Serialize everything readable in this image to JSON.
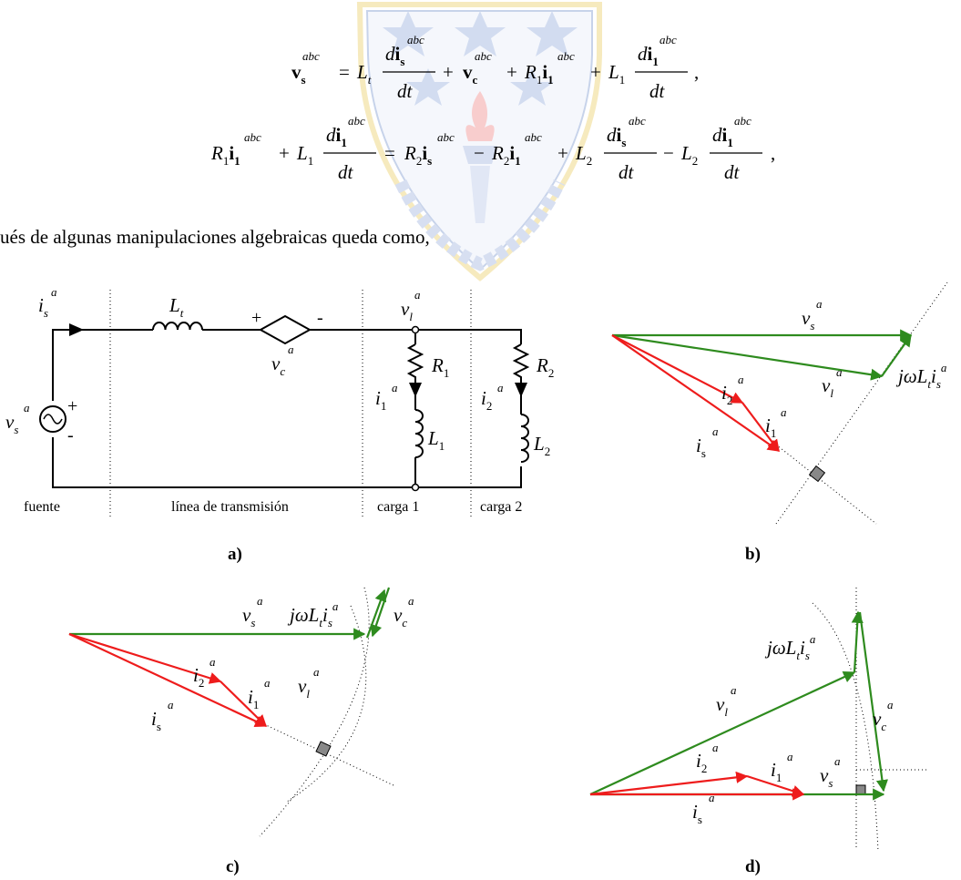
{
  "equations": {
    "eq1": {
      "lhs_bold": "v",
      "lhs_sub": "s",
      "lhs_sup": "abc",
      "lt": "L",
      "lt_sub": "t",
      "frac1_num_d": "d",
      "frac1_num_bold": "i",
      "frac1_num_sub": "s",
      "frac1_num_sup": "abc",
      "frac1_den": "dt",
      "vc_bold": "v",
      "vc_sub": "c",
      "vc_sup": "abc",
      "r1": "R",
      "r1_sub": "1",
      "i1_bold": "i",
      "i1_sub": "1",
      "i1_sup": "abc",
      "l1": "L",
      "l1_sub": "1",
      "frac2_num_d": "d",
      "frac2_num_bold": "i",
      "frac2_num_sub": "1",
      "frac2_num_sup": "abc",
      "frac2_den": "dt"
    },
    "eq2": {
      "r1": "R",
      "r1_sub": "1",
      "i1_bold": "i",
      "i1_sub": "1",
      "i1_sup": "abc",
      "l1": "L",
      "l1_sub": "1",
      "frac1_num_d": "d",
      "frac1_num_bold": "i",
      "frac1_num_sub": "1",
      "frac1_num_sup": "abc",
      "frac1_den": "dt",
      "r2a": "R",
      "r2a_sub": "2",
      "is_bold": "i",
      "is_sub": "s",
      "is_sup": "abc",
      "r2b": "R",
      "r2b_sub": "2",
      "i1b_bold": "i",
      "i1b_sub": "1",
      "i1b_sup": "abc",
      "l2a": "L",
      "l2a_sub": "2",
      "frac2_num_d": "d",
      "frac2_num_bold": "i",
      "frac2_num_sub": "s",
      "frac2_num_sup": "abc",
      "frac2_den": "dt",
      "l2b": "L",
      "l2b_sub": "2",
      "frac3_num_d": "d",
      "frac3_num_bold": "i",
      "frac3_num_sub": "1",
      "frac3_num_sup": "abc",
      "frac3_den": "dt"
    }
  },
  "prose_text": "ués de algunas manipulaciones algebraicas queda como,",
  "circuit": {
    "is_label": "i",
    "is_sub": "s",
    "is_sup": "a",
    "lt_label": "L",
    "lt_sub": "t",
    "plus": "+",
    "minus": "-",
    "vc_label": "v",
    "vc_sub": "c",
    "vc_sup": "a",
    "vl_label": "v",
    "vl_sub": "l",
    "vl_sup": "a",
    "vs_label": "v",
    "vs_sub": "s",
    "vs_sup": "a",
    "src_plus": "+",
    "src_minus": "-",
    "r1_label": "R",
    "r1_sub": "1",
    "r2_label": "R",
    "r2_sub": "2",
    "i1_label": "i",
    "i1_sub": "1",
    "i1_sup": "a",
    "i2_label": "i",
    "i2_sub": "2",
    "i2_sup": "a",
    "l1_label": "L",
    "l1_sub": "1",
    "l2_label": "L",
    "l2_sub": "2",
    "sections": [
      "fuente",
      "línea de transmisión",
      "carga 1",
      "carga 2"
    ]
  },
  "captions": {
    "a": "a)",
    "b": "b)",
    "c": "c)",
    "d": "d)"
  },
  "phasor_b": {
    "vs": {
      "base": "v",
      "sub": "s",
      "sup": "a"
    },
    "vl": {
      "base": "v",
      "sub": "l",
      "sup": "a"
    },
    "i2": {
      "base": "i",
      "sub": "2",
      "sup": "a"
    },
    "i1": {
      "base": "i",
      "sub": "1",
      "sup": "a"
    },
    "is": {
      "base": "i",
      "sub": "s",
      "sup": "a"
    },
    "jwl": {
      "pre": "jω",
      "L": "L",
      "Lsub": "t",
      "i": "i",
      "isub": "s",
      "isup": "a"
    }
  },
  "phasor_c": {
    "vs": {
      "base": "v",
      "sub": "s",
      "sup": "a"
    },
    "vl": {
      "base": "v",
      "sub": "l",
      "sup": "a"
    },
    "vc": {
      "base": "v",
      "sub": "c",
      "sup": "a"
    },
    "i2": {
      "base": "i",
      "sub": "2",
      "sup": "a"
    },
    "i1": {
      "base": "i",
      "sub": "1",
      "sup": "a"
    },
    "is": {
      "base": "i",
      "sub": "s",
      "sup": "a"
    },
    "jwl": {
      "pre": "jω",
      "L": "L",
      "Lsub": "t",
      "i": "i",
      "isub": "s",
      "isup": "a"
    }
  },
  "phasor_d": {
    "vs": {
      "base": "v",
      "sub": "s",
      "sup": "a"
    },
    "vl": {
      "base": "v",
      "sub": "l",
      "sup": "a"
    },
    "vc": {
      "base": "v",
      "sub": "c",
      "sup": "a"
    },
    "i2": {
      "base": "i",
      "sub": "2",
      "sup": "a"
    },
    "i1": {
      "base": "i",
      "sub": "1",
      "sup": "a"
    },
    "is": {
      "base": "i",
      "sub": "s",
      "sup": "a"
    },
    "jwl": {
      "pre": "jω",
      "L": "L",
      "Lsub": "t",
      "i": "i",
      "isub": "s",
      "isup": "a"
    }
  },
  "colors": {
    "green": "#2e8b1e",
    "red": "#ee1c1c",
    "watermark_blue": "#9ab0da",
    "watermark_gold": "#f0d98a"
  }
}
